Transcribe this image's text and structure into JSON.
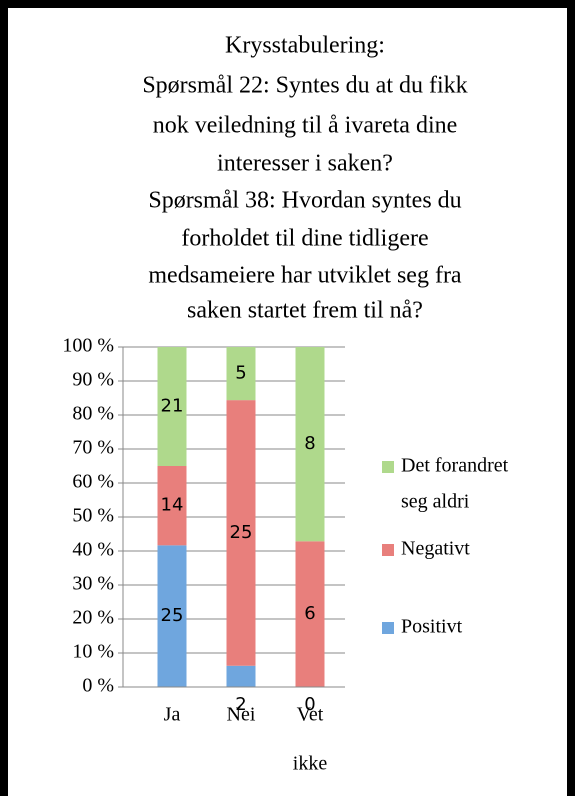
{
  "chart_data": {
    "type": "bar",
    "stacked": "percent",
    "title": [
      "Krysstabulering:",
      "Spørsmål 22: Syntes du at du fikk",
      "nok veiledning til å ivareta dine",
      "interesser i saken?",
      "Spørsmål 38: Hvordan syntes du",
      "forholdet til dine tidligere",
      "medsameiere har utviklet seg fra",
      "saken startet frem til nå?"
    ],
    "categories": [
      [
        "Ja"
      ],
      [
        "Nei"
      ],
      [
        "Vet",
        "ikke"
      ]
    ],
    "series": [
      {
        "name": "Positivt",
        "color": "#6fa6de",
        "values": [
          25,
          2,
          0
        ]
      },
      {
        "name": "Negativt",
        "color": "#e87f7c",
        "values": [
          14,
          25,
          6
        ]
      },
      {
        "name": "Det forandret seg aldri",
        "legend_lines": [
          "Det forandret",
          "seg aldri"
        ],
        "color": "#afd98c",
        "values": [
          21,
          5,
          8
        ]
      }
    ],
    "ylim": [
      0,
      100
    ],
    "yticks": [
      {
        "value": 0,
        "label": "0 %"
      },
      {
        "value": 10,
        "label": "10 %"
      },
      {
        "value": 20,
        "label": "20 %"
      },
      {
        "value": 30,
        "label": "30 %"
      },
      {
        "value": 40,
        "label": "40 %"
      },
      {
        "value": 50,
        "label": "50 %"
      },
      {
        "value": 60,
        "label": "60 %"
      },
      {
        "value": 70,
        "label": "70 %"
      },
      {
        "value": 80,
        "label": "80 %"
      },
      {
        "value": 90,
        "label": "90 %"
      },
      {
        "value": 100,
        "label": "100 %"
      }
    ],
    "grid": true,
    "legend": "right"
  }
}
